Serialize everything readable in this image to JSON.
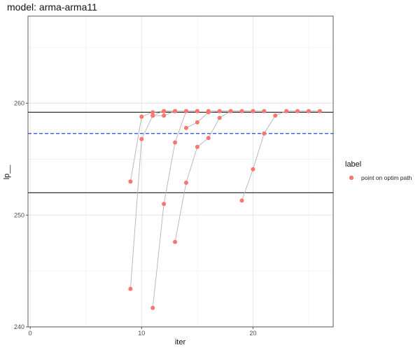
{
  "chart_data": {
    "type": "scatter",
    "title": "model: arma-arma11",
    "xlabel": "iter",
    "ylabel": "lp__",
    "xlim": [
      -0.2,
      27.2
    ],
    "ylim": [
      240,
      267.8
    ],
    "xticks": [
      0,
      10,
      20
    ],
    "yticks": [
      240,
      250,
      260
    ],
    "grid": true,
    "legend": {
      "title": "label",
      "position": "right",
      "entries": [
        {
          "label": "point on optim path",
          "color": "#f8766d"
        }
      ]
    },
    "reference_lines": [
      {
        "y": 259.2,
        "style": "solid",
        "color": "#333333"
      },
      {
        "y": 252.0,
        "style": "solid",
        "color": "#333333"
      },
      {
        "y": 257.3,
        "style": "dashed",
        "color": "#3b5bdb"
      }
    ],
    "paths": [
      {
        "points": [
          {
            "x": 9,
            "y": 253.0
          },
          {
            "x": 10,
            "y": 258.8
          },
          {
            "x": 11,
            "y": 259.2
          },
          {
            "x": 12,
            "y": 259.3
          },
          {
            "x": 13,
            "y": 259.3
          }
        ]
      },
      {
        "points": [
          {
            "x": 9,
            "y": 243.4
          },
          {
            "x": 10,
            "y": 256.8
          },
          {
            "x": 11,
            "y": 258.9
          },
          {
            "x": 12,
            "y": 259.3
          },
          {
            "x": 13,
            "y": 259.3
          }
        ]
      },
      {
        "points": [
          {
            "x": 11,
            "y": 241.7
          },
          {
            "x": 12,
            "y": 251.0
          },
          {
            "x": 13,
            "y": 256.5
          },
          {
            "x": 14,
            "y": 259.3
          },
          {
            "x": 15,
            "y": 259.3
          }
        ]
      },
      {
        "points": [
          {
            "x": 11,
            "y": 258.9
          },
          {
            "x": 12,
            "y": 258.9
          },
          {
            "x": 13,
            "y": 259.3
          },
          {
            "x": 14,
            "y": 259.3
          },
          {
            "x": 15,
            "y": 259.3
          }
        ]
      },
      {
        "points": [
          {
            "x": 13,
            "y": 247.6
          },
          {
            "x": 14,
            "y": 252.9
          },
          {
            "x": 15,
            "y": 256.1
          },
          {
            "x": 16,
            "y": 256.9
          },
          {
            "x": 17,
            "y": 258.7
          },
          {
            "x": 18,
            "y": 259.3
          },
          {
            "x": 19,
            "y": 259.3
          },
          {
            "x": 20,
            "y": 259.3
          }
        ]
      },
      {
        "points": [
          {
            "x": 14,
            "y": 257.8
          },
          {
            "x": 15,
            "y": 258.3
          },
          {
            "x": 16,
            "y": 259.2
          },
          {
            "x": 17,
            "y": 259.3
          },
          {
            "x": 18,
            "y": 259.3
          }
        ]
      },
      {
        "points": [
          {
            "x": 19,
            "y": 251.3
          },
          {
            "x": 20,
            "y": 254.1
          },
          {
            "x": 21,
            "y": 257.3
          },
          {
            "x": 22,
            "y": 258.9
          },
          {
            "x": 23,
            "y": 259.3
          },
          {
            "x": 24,
            "y": 259.3
          },
          {
            "x": 25,
            "y": 259.3
          },
          {
            "x": 26,
            "y": 259.3
          }
        ]
      },
      {
        "points": [
          {
            "x": 16,
            "y": 259.3
          },
          {
            "x": 17,
            "y": 259.3
          },
          {
            "x": 20,
            "y": 259.3
          },
          {
            "x": 21,
            "y": 259.3
          }
        ]
      }
    ]
  }
}
